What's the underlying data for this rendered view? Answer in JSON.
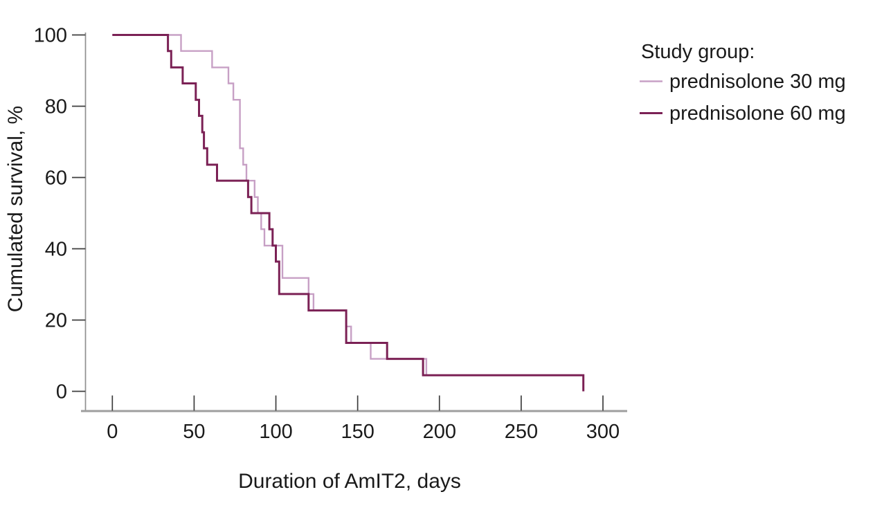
{
  "figure": {
    "background": "#ffffff",
    "text_color": "#1a1a1a",
    "axis_line_color": "#9a9a9a",
    "tick_color": "#3d3d3d"
  },
  "chart_data": {
    "type": "line",
    "subtype": "kaplan-meier-step-survival",
    "title": "",
    "xlabel": "Duration of AmIT2, days",
    "ylabel": "Cumulated survival, %",
    "xlim": [
      0,
      314
    ],
    "ylim": [
      0,
      100
    ],
    "xticks": [
      0,
      50,
      100,
      150,
      200,
      250,
      300
    ],
    "yticks": [
      100,
      80,
      60,
      40,
      20,
      0
    ],
    "grid": false,
    "legend_title": "Study group:",
    "legend_position": "outside-right-top",
    "series": [
      {
        "name": "prednisolone 30 mg",
        "color": "#c7a0c5",
        "line_width": 2.4,
        "start": [
          0,
          100
        ],
        "events": [
          [
            42,
            95.5
          ],
          [
            61,
            90.9
          ],
          [
            71,
            86.4
          ],
          [
            74,
            81.8
          ],
          [
            78,
            68.2
          ],
          [
            80,
            63.6
          ],
          [
            82,
            59.1
          ],
          [
            87,
            54.5
          ],
          [
            89,
            50.0
          ],
          [
            91,
            45.5
          ],
          [
            93,
            40.9
          ],
          [
            104,
            31.8
          ],
          [
            120,
            27.3
          ],
          [
            123,
            22.7
          ],
          [
            143,
            18.2
          ],
          [
            146,
            13.6
          ],
          [
            158,
            9.1
          ],
          [
            192,
            4.5
          ]
        ],
        "end_x": 288
      },
      {
        "name": "prednisolone 60 mg",
        "color": "#7b2155",
        "line_width": 3,
        "start": [
          0,
          100
        ],
        "events": [
          [
            34,
            95.5
          ],
          [
            36,
            90.9
          ],
          [
            43,
            86.4
          ],
          [
            51,
            81.8
          ],
          [
            53,
            77.3
          ],
          [
            55,
            72.7
          ],
          [
            56,
            68.2
          ],
          [
            58,
            63.6
          ],
          [
            64,
            59.1
          ],
          [
            83,
            54.5
          ],
          [
            85,
            50.0
          ],
          [
            96,
            45.5
          ],
          [
            98,
            40.9
          ],
          [
            100,
            36.4
          ],
          [
            102,
            27.3
          ],
          [
            120,
            22.7
          ],
          [
            143,
            13.6
          ],
          [
            168,
            9.1
          ],
          [
            190,
            4.5
          ],
          [
            288,
            0
          ]
        ],
        "end_x": 288
      }
    ]
  }
}
